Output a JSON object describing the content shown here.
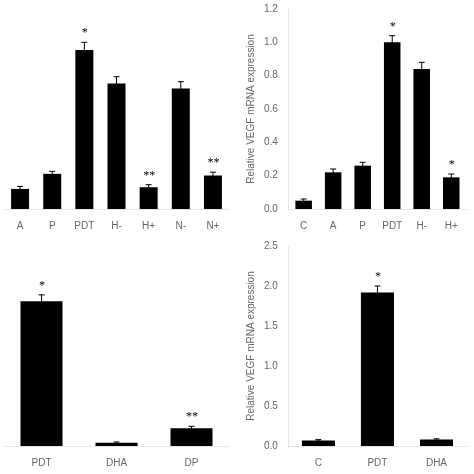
{
  "chart_data": [
    {
      "type": "bar",
      "categories": [
        "A",
        "P",
        "PDT",
        "H-",
        "H+",
        "N-",
        "N+"
      ],
      "values": [
        0.12,
        0.21,
        0.95,
        0.75,
        0.13,
        0.72,
        0.2
      ],
      "errors": [
        0.015,
        0.015,
        0.045,
        0.04,
        0.015,
        0.04,
        0.02
      ],
      "annotations": [
        {
          "category": "PDT",
          "text": "*"
        },
        {
          "category": "H+",
          "text": "**"
        },
        {
          "category": "N+",
          "text": "**"
        }
      ],
      "color": "#000000",
      "ylim": [
        0,
        1.2
      ],
      "tick_labels": "x",
      "grid": false
    },
    {
      "type": "bar",
      "categories": [
        "C",
        "A",
        "P",
        "PDT",
        "H-",
        "H+"
      ],
      "values": [
        0.05,
        0.22,
        0.26,
        1.0,
        0.84,
        0.19
      ],
      "errors": [
        0.01,
        0.02,
        0.02,
        0.04,
        0.04,
        0.02
      ],
      "annotations": [
        {
          "category": "PDT",
          "text": "*"
        },
        {
          "category": "H+",
          "text": "*"
        }
      ],
      "ylabel": "Relative VEGF mRNA expression",
      "color": "#000000",
      "ylim": [
        0,
        1.2
      ],
      "yticks": [
        {
          "value": 0,
          "label": "0.0"
        },
        0.2,
        0.4,
        0.6,
        0.8,
        {
          "value": 1.0,
          "label": "1.0"
        },
        1.2
      ],
      "grid": false
    },
    {
      "type": "bar",
      "categories": [
        "PDT",
        "DHA",
        "DP"
      ],
      "values": [
        1.8,
        0.04,
        0.22
      ],
      "errors": [
        0.08,
        0.01,
        0.025
      ],
      "annotations": [
        {
          "category": "PDT",
          "text": "*"
        },
        {
          "category": "DP",
          "text": "**"
        }
      ],
      "color": "#000000",
      "ylim": [
        0,
        2.5
      ],
      "tick_labels": "x",
      "grid": false
    },
    {
      "type": "bar",
      "categories": [
        "C",
        "PDT",
        "DHA"
      ],
      "values": [
        0.07,
        1.92,
        0.08
      ],
      "errors": [
        0.01,
        0.08,
        0.01
      ],
      "annotations": [
        {
          "category": "PDT",
          "text": "*"
        }
      ],
      "ylabel": "Relative VEGF mRNA expression",
      "color": "#000000",
      "ylim": [
        0,
        2.5
      ],
      "yticks": [
        {
          "value": 0,
          "label": "0.0"
        },
        0.5,
        {
          "value": 1.0,
          "label": "1.0"
        },
        1.5,
        {
          "value": 2.0,
          "label": "2.0"
        },
        2.5
      ],
      "grid": false
    }
  ]
}
